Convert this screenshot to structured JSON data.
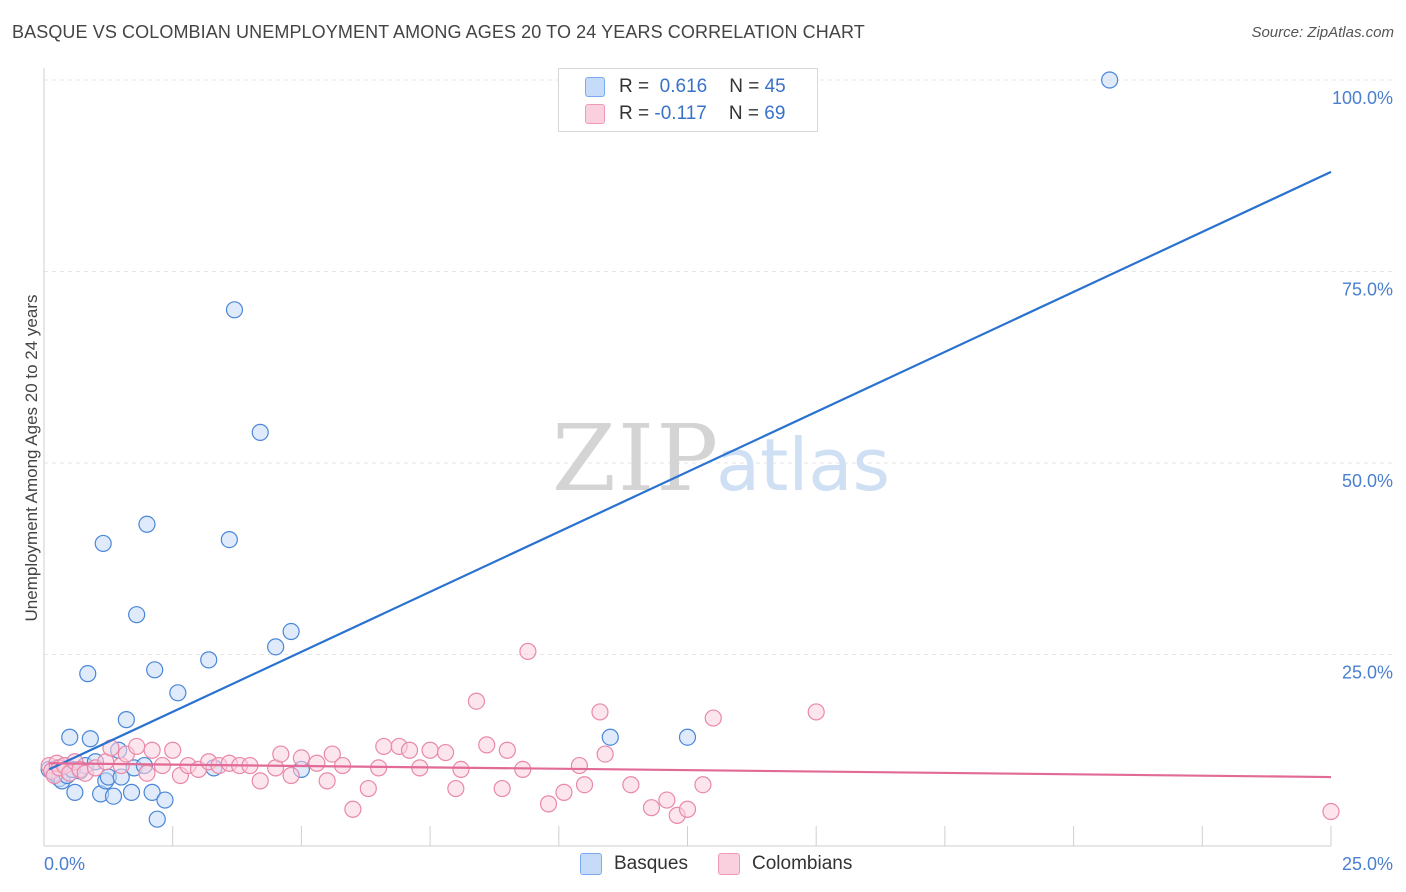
{
  "title": "BASQUE VS COLOMBIAN UNEMPLOYMENT AMONG AGES 20 TO 24 YEARS CORRELATION CHART",
  "source": "Source: ZipAtlas.com",
  "watermark": {
    "zip": "ZIP",
    "atlas": "atlas"
  },
  "legend": {
    "rows": [
      {
        "r_label": "R =",
        "r_value": "0.616",
        "n_label": "N =",
        "n_value": "45",
        "color": "#7aaaf0",
        "fill": "#c5dbf7"
      },
      {
        "r_label": "R =",
        "r_value": "-0.117",
        "n_label": "N =",
        "n_value": "69",
        "color": "#f09ab8",
        "fill": "#fbd0de"
      }
    ],
    "bottom": [
      {
        "label": "Basques",
        "color": "#7aaaf0",
        "fill": "#c5dbf7"
      },
      {
        "label": "Colombians",
        "color": "#f09ab8",
        "fill": "#fbd0de"
      }
    ]
  },
  "chart_data": {
    "type": "scatter",
    "title": "BASQUE VS COLOMBIAN UNEMPLOYMENT AMONG AGES 20 TO 24 YEARS CORRELATION CHART",
    "xlabel": "",
    "ylabel": "Unemployment Among Ages 20 to 24 years",
    "xlim": [
      0,
      25
    ],
    "ylim": [
      0,
      100
    ],
    "x_tick_labels": [
      "0.0%",
      "25.0%"
    ],
    "y_tick_labels": [
      "25.0%",
      "50.0%",
      "75.0%",
      "100.0%"
    ],
    "y_tick_values": [
      25,
      50,
      75,
      100
    ],
    "grid": true,
    "series": [
      {
        "name": "Basques",
        "color": "#4a86d8",
        "fill": "#c5dbf7",
        "trend": {
          "x": [
            0.1,
            25
          ],
          "y": [
            10.0,
            88.0
          ],
          "color": "#2a72d0"
        },
        "points": [
          [
            0.1,
            10.0
          ],
          [
            0.2,
            9.5
          ],
          [
            0.25,
            10.2
          ],
          [
            0.3,
            8.8
          ],
          [
            0.35,
            8.5
          ],
          [
            0.4,
            10.5
          ],
          [
            0.45,
            9.2
          ],
          [
            0.5,
            14.2
          ],
          [
            0.6,
            7.0
          ],
          [
            0.7,
            9.8
          ],
          [
            0.8,
            10.5
          ],
          [
            0.85,
            22.5
          ],
          [
            0.9,
            14.0
          ],
          [
            1.0,
            11.0
          ],
          [
            1.1,
            6.8
          ],
          [
            1.15,
            39.5
          ],
          [
            1.2,
            8.5
          ],
          [
            1.25,
            9.0
          ],
          [
            1.35,
            6.5
          ],
          [
            1.45,
            12.5
          ],
          [
            1.5,
            9.0
          ],
          [
            1.6,
            16.5
          ],
          [
            1.7,
            7.0
          ],
          [
            1.75,
            10.2
          ],
          [
            1.8,
            30.2
          ],
          [
            1.95,
            10.5
          ],
          [
            2.0,
            42.0
          ],
          [
            2.1,
            7.0
          ],
          [
            2.15,
            23.0
          ],
          [
            2.2,
            3.5
          ],
          [
            2.35,
            6.0
          ],
          [
            2.6,
            20.0
          ],
          [
            3.2,
            24.3
          ],
          [
            3.3,
            10.2
          ],
          [
            3.6,
            40.0
          ],
          [
            3.7,
            70.0
          ],
          [
            4.2,
            54.0
          ],
          [
            4.5,
            26.0
          ],
          [
            4.8,
            28.0
          ],
          [
            5.0,
            10.0
          ],
          [
            11.0,
            14.2
          ],
          [
            12.5,
            14.2
          ],
          [
            20.7,
            100.0
          ],
          [
            0.15,
            9.8
          ],
          [
            0.55,
            10.0
          ]
        ]
      },
      {
        "name": "Colombians",
        "color": "#e889a8",
        "fill": "#fbd0de",
        "trend": {
          "x": [
            0.1,
            25
          ],
          "y": [
            10.8,
            9.0
          ],
          "color": "#e26a96"
        },
        "points": [
          [
            0.1,
            10.5
          ],
          [
            0.15,
            9.8
          ],
          [
            0.2,
            9.2
          ],
          [
            0.25,
            10.8
          ],
          [
            0.3,
            10.2
          ],
          [
            0.4,
            10.5
          ],
          [
            0.5,
            9.5
          ],
          [
            0.6,
            11.0
          ],
          [
            0.7,
            10.0
          ],
          [
            0.8,
            9.5
          ],
          [
            1.0,
            10.2
          ],
          [
            1.2,
            11.0
          ],
          [
            1.3,
            12.8
          ],
          [
            1.5,
            10.5
          ],
          [
            1.6,
            12.0
          ],
          [
            1.8,
            13.0
          ],
          [
            2.0,
            9.5
          ],
          [
            2.1,
            12.5
          ],
          [
            2.3,
            10.5
          ],
          [
            2.5,
            12.5
          ],
          [
            2.65,
            9.2
          ],
          [
            2.8,
            10.5
          ],
          [
            3.0,
            10.0
          ],
          [
            3.2,
            11.0
          ],
          [
            3.4,
            10.5
          ],
          [
            3.6,
            10.8
          ],
          [
            3.8,
            10.5
          ],
          [
            4.0,
            10.5
          ],
          [
            4.2,
            8.5
          ],
          [
            4.5,
            10.2
          ],
          [
            4.6,
            12.0
          ],
          [
            4.8,
            9.2
          ],
          [
            5.0,
            11.5
          ],
          [
            5.3,
            10.8
          ],
          [
            5.5,
            8.5
          ],
          [
            5.6,
            12.0
          ],
          [
            5.8,
            10.5
          ],
          [
            6.0,
            4.8
          ],
          [
            6.3,
            7.5
          ],
          [
            6.5,
            10.2
          ],
          [
            6.6,
            13.0
          ],
          [
            6.9,
            13.0
          ],
          [
            7.1,
            12.5
          ],
          [
            7.3,
            10.2
          ],
          [
            7.5,
            12.5
          ],
          [
            7.8,
            12.2
          ],
          [
            8.0,
            7.5
          ],
          [
            8.1,
            10.0
          ],
          [
            8.4,
            18.9
          ],
          [
            8.6,
            13.2
          ],
          [
            8.9,
            7.5
          ],
          [
            9.0,
            12.5
          ],
          [
            9.3,
            10.0
          ],
          [
            9.8,
            5.5
          ],
          [
            9.4,
            25.4
          ],
          [
            10.1,
            7.0
          ],
          [
            10.4,
            10.5
          ],
          [
            10.5,
            8.0
          ],
          [
            10.8,
            17.5
          ],
          [
            10.9,
            12.0
          ],
          [
            11.4,
            8.0
          ],
          [
            11.8,
            5.0
          ],
          [
            12.1,
            6.0
          ],
          [
            12.3,
            4.0
          ],
          [
            12.5,
            4.8
          ],
          [
            12.8,
            8.0
          ],
          [
            13.0,
            16.7
          ],
          [
            15.0,
            17.5
          ],
          [
            25.0,
            4.5
          ]
        ]
      }
    ]
  }
}
